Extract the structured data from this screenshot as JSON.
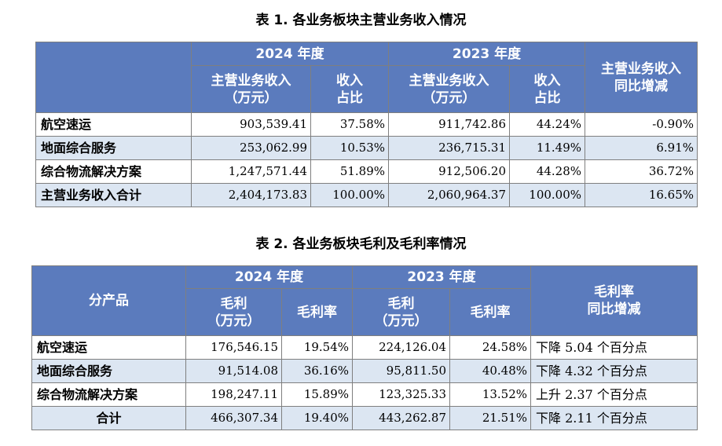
{
  "table1": {
    "caption": "表 1. 各业务板块主营业务收入情况",
    "headers": {
      "corner": "",
      "year_2024": "2024 年度",
      "year_2023": "2023 年度",
      "revenue": "主营业务收入",
      "revenue_unit": "（万元）",
      "share_line1": "收入",
      "share_line2": "占比",
      "yoy_line1": "主营业务收入",
      "yoy_line2": "同比增减"
    },
    "rows": [
      {
        "name": "航空速运",
        "rev2024": "903,539.41",
        "share2024": "37.58%",
        "rev2023": "911,742.86",
        "share2023": "44.24%",
        "yoy": "-0.90%"
      },
      {
        "name": "地面综合服务",
        "rev2024": "253,062.99",
        "share2024": "10.53%",
        "rev2023": "236,715.31",
        "share2023": "11.49%",
        "yoy": "6.91%"
      },
      {
        "name": "综合物流解决方案",
        "rev2024": "1,247,571.44",
        "share2024": "51.89%",
        "rev2023": "912,506.20",
        "share2023": "44.28%",
        "yoy": "36.72%"
      },
      {
        "name": "主营业务收入合计",
        "rev2024": "2,404,173.83",
        "share2024": "100.00%",
        "rev2023": "2,060,964.37",
        "share2023": "100.00%",
        "yoy": "16.65%"
      }
    ]
  },
  "table2": {
    "caption": "表 2. 各业务板块毛利及毛利率情况",
    "headers": {
      "corner": "分产品",
      "year_2024": "2024 年度",
      "year_2023": "2023 年度",
      "gp": "毛利",
      "gp_unit": "（万元）",
      "margin": "毛利率",
      "yoy_line1": "毛利率",
      "yoy_line2": "同比增减"
    },
    "rows": [
      {
        "name": "航空速运",
        "gp2024": "176,546.15",
        "m2024": "19.54%",
        "gp2023": "224,126.04",
        "m2023": "24.58%",
        "yoy": "下降 5.04 个百分点"
      },
      {
        "name": "地面综合服务",
        "gp2024": "91,514.08",
        "m2024": "36.16%",
        "gp2023": "95,811.50",
        "m2023": "40.48%",
        "yoy": "下降 4.32 个百分点"
      },
      {
        "name": "综合物流解决方案",
        "gp2024": "198,247.11",
        "m2024": "15.89%",
        "gp2023": "123,325.33",
        "m2023": "13.52%",
        "yoy": "上升 2.37 个百分点"
      },
      {
        "name": "合计",
        "gp2024": "466,307.34",
        "m2024": "19.40%",
        "gp2023": "443,262.87",
        "m2023": "21.51%",
        "yoy": "下降 2.11 个百分点"
      }
    ]
  }
}
